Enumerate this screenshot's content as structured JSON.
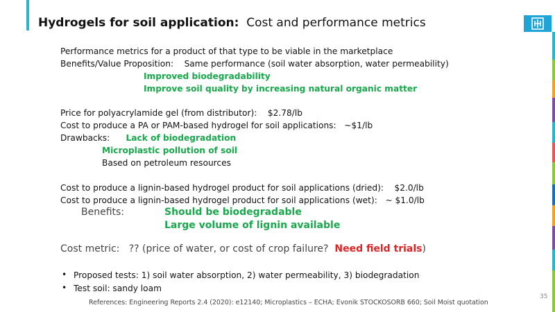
{
  "header": {
    "title_bold": "Hydrogels for soil application:",
    "title_rest": "Cost and performance metrics"
  },
  "colors": {
    "accent_teal": "#2eb3c8",
    "green_text": "#19a84c",
    "red_text": "#e02323",
    "logo_blue": "#1fa4d8"
  },
  "icons": {
    "logo": "sandia-thunderbird-icon"
  },
  "body": {
    "intro": "Performance metrics for a product of that type to be viable in the marketplace",
    "benefits_label": "Benefits/Value Proposition:",
    "benefits_value": "Same performance (soil water absorption, water permeability)",
    "benefit_1": "Improved biodegradability",
    "benefit_2": "Improve soil quality by increasing natural organic matter",
    "price_label": "Price for polyacrylamide gel (from distributor):",
    "price_value": "$2.78/lb",
    "cost_pam_label": "Cost to produce a PA or PAM-based hydrogel for soil applications:",
    "cost_pam_value": "~$1/lb",
    "drawbacks_label": "Drawbacks:",
    "drawback_1": "Lack of biodegradation",
    "drawback_2": "Microplastic pollution of soil",
    "drawback_3": "Based on petroleum resources",
    "lignin_dried_label": "Cost to produce a lignin-based hydrogel product for soil applications (dried):",
    "lignin_dried_value": "$2.0/lb",
    "lignin_wet_label": "Cost to produce a lignin-based hydrogel product for soil applications (wet):",
    "lignin_wet_value": "~ $1.0/lb",
    "lignin_benefits_label": "Benefits:",
    "lignin_benefit_1": "Should be biodegradable",
    "lignin_benefit_2": "Large volume of lignin available",
    "cost_metric_label": "Cost metric:",
    "cost_metric_text": "?? (price of water, or cost of crop failure?",
    "cost_metric_red": "Need field trials",
    "cost_metric_close": ")",
    "bullets": [
      "Proposed tests: 1) soil water absorption, 2) water permeability, 3) biodegradation",
      "Test soil:  sandy loam"
    ]
  },
  "footer": {
    "references": "References: Engineering Reports 2.4 (2020): e12140; Microplastics – ECHA; Evonik STOCKOSORB 660; Soil Moist quotation",
    "page_number": "35"
  }
}
